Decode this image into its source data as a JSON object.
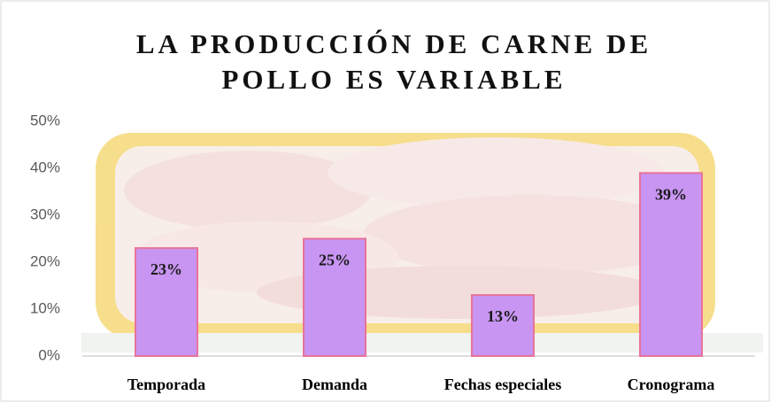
{
  "chart_data": {
    "type": "bar",
    "title": [
      "LA PRODUCCIÓN DE CARNE DE",
      "POLLO ES VARIABLE"
    ],
    "categories": [
      "Temporada",
      "Demanda",
      "Fechas especiales",
      "Cronograma"
    ],
    "values": [
      23,
      25,
      13,
      39
    ],
    "value_labels": [
      "23%",
      "25%",
      "13%",
      "39%"
    ],
    "color": "#c895f2",
    "ylim": [
      0,
      50
    ],
    "yticks": [
      {
        "value": 0,
        "label": "0%"
      },
      {
        "value": 10,
        "label": "10%"
      },
      {
        "value": 20,
        "label": "20%"
      },
      {
        "value": 30,
        "label": "30%"
      },
      {
        "value": 40,
        "label": "40%"
      },
      {
        "value": 50,
        "label": "50%"
      }
    ],
    "grid": false
  }
}
